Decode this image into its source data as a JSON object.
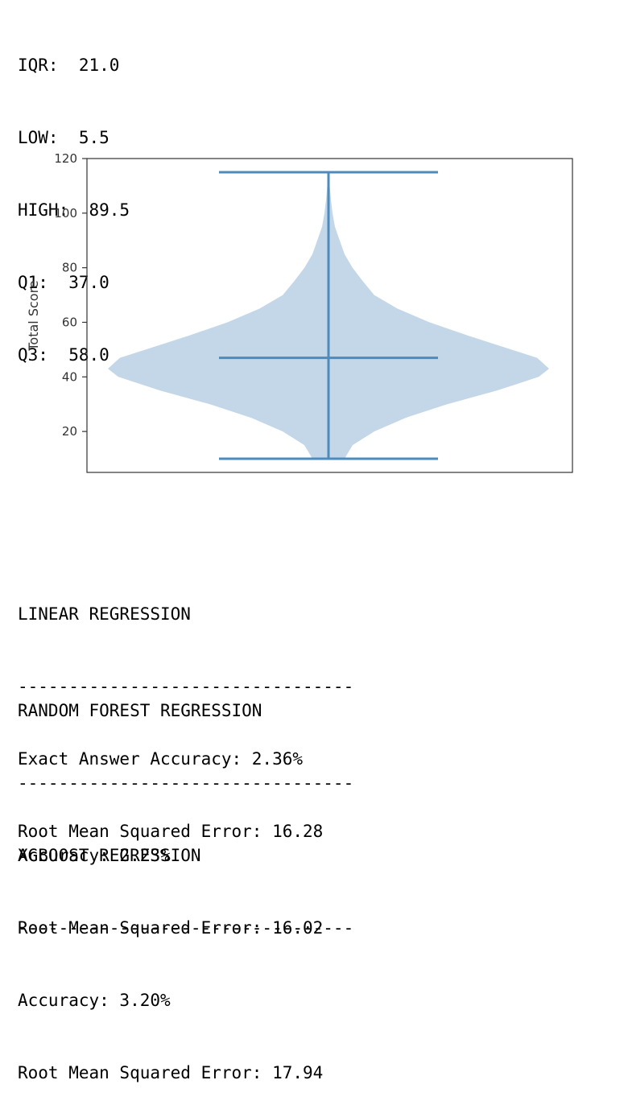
{
  "stats": {
    "iqr": "IQR:  21.0",
    "low": "LOW:  5.5",
    "high": "HIGH:  89.5",
    "q1": "Q1:  37.0",
    "q3": "Q3:  58.0"
  },
  "chart_data": {
    "type": "violin",
    "ylabel": "Total Score",
    "ylim": [
      5,
      120
    ],
    "yticks": [
      20,
      40,
      60,
      80,
      100,
      120
    ],
    "grid": false,
    "color": "#1f77b4",
    "summary": {
      "min": 10,
      "median": 47,
      "max": 115
    },
    "density": [
      {
        "y": 10,
        "halfwidth": 0.2
      },
      {
        "y": 15,
        "halfwidth": 0.3
      },
      {
        "y": 20,
        "halfwidth": 0.57
      },
      {
        "y": 25,
        "halfwidth": 0.96
      },
      {
        "y": 30,
        "halfwidth": 1.48
      },
      {
        "y": 35,
        "halfwidth": 2.1
      },
      {
        "y": 40,
        "halfwidth": 2.62
      },
      {
        "y": 43,
        "halfwidth": 2.75
      },
      {
        "y": 47,
        "halfwidth": 2.6
      },
      {
        "y": 50,
        "halfwidth": 2.28
      },
      {
        "y": 55,
        "halfwidth": 1.75
      },
      {
        "y": 60,
        "halfwidth": 1.26
      },
      {
        "y": 65,
        "halfwidth": 0.86
      },
      {
        "y": 70,
        "halfwidth": 0.57
      },
      {
        "y": 75,
        "halfwidth": 0.43
      },
      {
        "y": 80,
        "halfwidth": 0.3
      },
      {
        "y": 85,
        "halfwidth": 0.2
      },
      {
        "y": 90,
        "halfwidth": 0.14
      },
      {
        "y": 95,
        "halfwidth": 0.08
      },
      {
        "y": 100,
        "halfwidth": 0.05
      },
      {
        "y": 105,
        "halfwidth": 0.03
      },
      {
        "y": 110,
        "halfwidth": 0.015
      },
      {
        "y": 115,
        "halfwidth": 0.005
      }
    ]
  },
  "results": [
    {
      "title": "LINEAR REGRESSION",
      "divider": "---------------------------------",
      "accuracy": "Exact Answer Accuracy: 2.36%",
      "rmse": "Root Mean Squared Error: 16.28"
    },
    {
      "title": "RANDOM FOREST REGRESSION",
      "divider": "---------------------------------",
      "accuracy": "Accuracy: 2.23%",
      "rmse": "Root Mean Squared Error: 16.02"
    },
    {
      "title": "XGBOOST REGRESSION",
      "divider": "---------------------------------",
      "accuracy": "Accuracy: 3.20%",
      "rmse": "Root Mean Squared Error: 17.94"
    }
  ]
}
